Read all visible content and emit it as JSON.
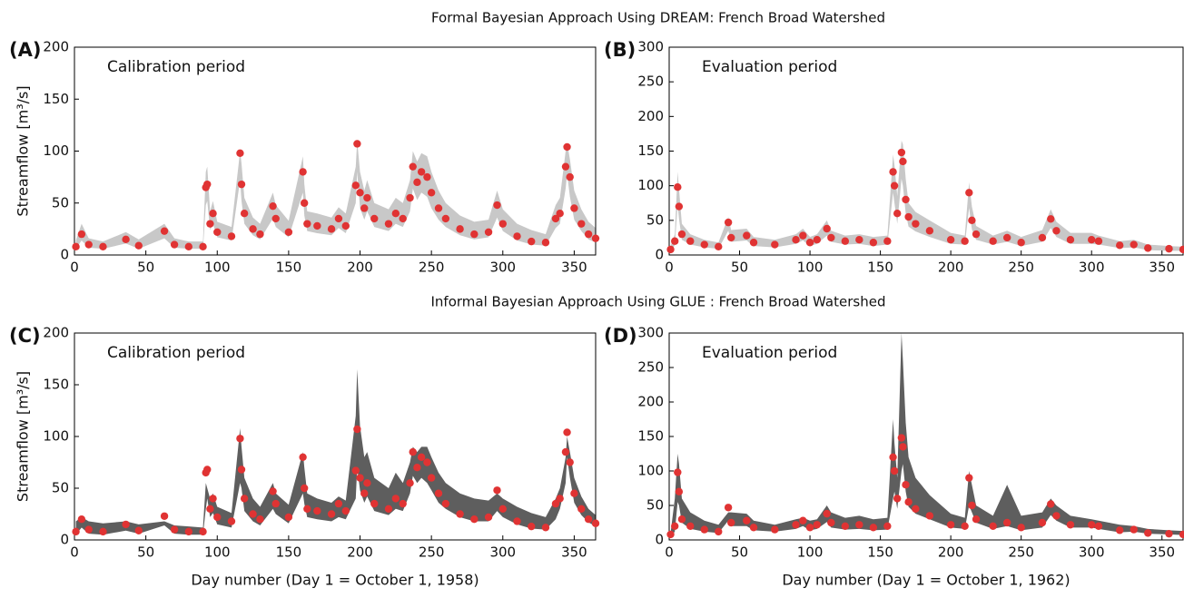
{
  "row_titles": [
    "Formal Bayesian Approach Using DREAM: French Broad Watershed",
    "Informal Bayesian Approach Using GLUE : French Broad Watershed"
  ],
  "chart_data": [
    {
      "type": "band_scatter",
      "panel": "(A)",
      "annotation": "Calibration period",
      "ylabel": "Streamflow [m³/s]",
      "band_color": "#c8c8c8",
      "point_color": "#e03333",
      "xlim": [
        0,
        365
      ],
      "xticks": [
        0,
        50,
        100,
        150,
        200,
        250,
        300,
        350
      ],
      "ylim": [
        0,
        200
      ],
      "yticks": [
        0,
        50,
        100,
        150,
        200
      ],
      "x": [
        1,
        5,
        10,
        20,
        36,
        45,
        63,
        70,
        80,
        90,
        92,
        93,
        95,
        97,
        100,
        110,
        116,
        117,
        119,
        125,
        130,
        139,
        141,
        150,
        160,
        161,
        163,
        170,
        180,
        185,
        190,
        197,
        198,
        200,
        203,
        205,
        210,
        220,
        225,
        230,
        235,
        237,
        240,
        243,
        247,
        250,
        255,
        260,
        270,
        280,
        290,
        296,
        300,
        310,
        320,
        330,
        337,
        340,
        344,
        345,
        347,
        350,
        355,
        360,
        365
      ],
      "observed": [
        8,
        20,
        10,
        8,
        15,
        9,
        23,
        10,
        8,
        8,
        65,
        68,
        30,
        40,
        22,
        18,
        98,
        68,
        40,
        25,
        20,
        47,
        35,
        22,
        80,
        50,
        30,
        28,
        25,
        35,
        28,
        67,
        107,
        60,
        45,
        55,
        35,
        30,
        40,
        35,
        55,
        85,
        70,
        80,
        75,
        60,
        45,
        35,
        25,
        20,
        22,
        48,
        30,
        18,
        13,
        12,
        35,
        40,
        85,
        104,
        75,
        45,
        30,
        20,
        16
      ],
      "lower": [
        6,
        14,
        7,
        6,
        11,
        6,
        16,
        7,
        6,
        6,
        48,
        52,
        24,
        30,
        17,
        14,
        72,
        52,
        30,
        19,
        15,
        35,
        27,
        17,
        60,
        38,
        23,
        21,
        19,
        26,
        21,
        50,
        80,
        45,
        34,
        42,
        27,
        23,
        30,
        27,
        42,
        64,
        53,
        60,
        56,
        45,
        34,
        27,
        19,
        15,
        17,
        36,
        23,
        14,
        10,
        9,
        26,
        30,
        64,
        78,
        56,
        34,
        23,
        15,
        12
      ],
      "upper": [
        14,
        30,
        16,
        13,
        22,
        15,
        30,
        16,
        13,
        13,
        80,
        85,
        42,
        52,
        32,
        27,
        100,
        88,
        55,
        36,
        30,
        60,
        48,
        33,
        95,
        68,
        42,
        40,
        36,
        46,
        40,
        85,
        110,
        80,
        62,
        72,
        50,
        44,
        55,
        50,
        72,
        100,
        90,
        98,
        95,
        80,
        62,
        50,
        38,
        32,
        34,
        62,
        44,
        30,
        24,
        20,
        48,
        55,
        100,
        108,
        92,
        62,
        44,
        32,
        26
      ]
    },
    {
      "type": "band_scatter",
      "panel": "(B)",
      "annotation": "Evaluation period",
      "band_color": "#c8c8c8",
      "point_color": "#e03333",
      "xlim": [
        0,
        365
      ],
      "xticks": [
        0,
        50,
        100,
        150,
        200,
        250,
        300,
        350
      ],
      "ylim": [
        0,
        300
      ],
      "yticks": [
        0,
        50,
        100,
        150,
        200,
        250,
        300
      ],
      "x": [
        1,
        4,
        6,
        7,
        9,
        15,
        25,
        35,
        42,
        44,
        55,
        60,
        75,
        90,
        95,
        100,
        105,
        112,
        115,
        125,
        135,
        145,
        155,
        159,
        160,
        162,
        165,
        166,
        168,
        170,
        175,
        185,
        200,
        210,
        213,
        215,
        218,
        230,
        240,
        250,
        265,
        271,
        275,
        285,
        300,
        305,
        320,
        330,
        340,
        355,
        365
      ],
      "observed": [
        8,
        20,
        98,
        70,
        30,
        20,
        15,
        12,
        47,
        25,
        28,
        18,
        15,
        22,
        28,
        18,
        22,
        38,
        25,
        20,
        22,
        18,
        20,
        120,
        100,
        60,
        148,
        135,
        80,
        55,
        45,
        35,
        22,
        20,
        90,
        50,
        30,
        20,
        25,
        18,
        25,
        52,
        35,
        22,
        22,
        20,
        14,
        15,
        10,
        9,
        8
      ],
      "lower": [
        6,
        14,
        72,
        52,
        22,
        15,
        11,
        9,
        35,
        19,
        21,
        13,
        11,
        16,
        21,
        13,
        16,
        28,
        19,
        15,
        16,
        13,
        15,
        90,
        75,
        45,
        110,
        100,
        60,
        41,
        34,
        26,
        16,
        15,
        68,
        37,
        22,
        15,
        19,
        13,
        19,
        39,
        26,
        16,
        16,
        15,
        10,
        11,
        7,
        6,
        6
      ],
      "upper": [
        13,
        30,
        120,
        95,
        45,
        30,
        22,
        18,
        55,
        36,
        38,
        26,
        22,
        30,
        38,
        26,
        30,
        50,
        35,
        28,
        30,
        26,
        28,
        145,
        130,
        85,
        165,
        160,
        110,
        75,
        62,
        50,
        32,
        28,
        105,
        70,
        42,
        28,
        35,
        26,
        36,
        66,
        48,
        32,
        32,
        28,
        20,
        22,
        15,
        13,
        12
      ]
    },
    {
      "type": "band_scatter",
      "panel": "(C)",
      "annotation": "Calibration period",
      "ylabel": "Streamflow [m³/s]",
      "xlabel": "Day number (Day 1 = October 1, 1958)",
      "band_color": "#5e5e5e",
      "point_color": "#e03333",
      "xlim": [
        0,
        365
      ],
      "xticks": [
        0,
        50,
        100,
        150,
        200,
        250,
        300,
        350
      ],
      "ylim": [
        0,
        200
      ],
      "yticks": [
        0,
        50,
        100,
        150,
        200
      ],
      "x": [
        1,
        5,
        10,
        20,
        36,
        45,
        63,
        70,
        80,
        90,
        92,
        93,
        95,
        97,
        100,
        110,
        116,
        117,
        119,
        125,
        130,
        139,
        141,
        150,
        160,
        161,
        163,
        170,
        180,
        185,
        190,
        197,
        198,
        200,
        203,
        205,
        210,
        220,
        225,
        230,
        235,
        237,
        240,
        243,
        247,
        250,
        255,
        260,
        270,
        280,
        290,
        296,
        300,
        310,
        320,
        330,
        337,
        340,
        344,
        345,
        347,
        350,
        355,
        360,
        365
      ],
      "observed": [
        8,
        20,
        10,
        8,
        15,
        9,
        23,
        10,
        8,
        8,
        65,
        68,
        30,
        40,
        22,
        18,
        98,
        68,
        40,
        25,
        20,
        47,
        35,
        22,
        80,
        50,
        30,
        28,
        25,
        35,
        28,
        67,
        107,
        60,
        45,
        55,
        35,
        30,
        40,
        35,
        55,
        85,
        70,
        80,
        75,
        60,
        45,
        35,
        25,
        20,
        22,
        48,
        30,
        18,
        13,
        12,
        35,
        40,
        85,
        104,
        75,
        45,
        30,
        20,
        16
      ],
      "lower": [
        5,
        12,
        6,
        5,
        9,
        6,
        14,
        6,
        5,
        5,
        30,
        40,
        22,
        26,
        15,
        12,
        55,
        50,
        28,
        18,
        14,
        30,
        25,
        16,
        45,
        35,
        22,
        20,
        18,
        22,
        20,
        40,
        70,
        48,
        36,
        42,
        28,
        24,
        30,
        28,
        45,
        62,
        55,
        60,
        55,
        48,
        36,
        30,
        22,
        18,
        18,
        28,
        22,
        15,
        11,
        10,
        20,
        30,
        55,
        80,
        60,
        36,
        24,
        17,
        13
      ],
      "upper": [
        18,
        22,
        18,
        16,
        18,
        15,
        18,
        14,
        13,
        12,
        55,
        50,
        40,
        45,
        32,
        26,
        108,
        90,
        60,
        40,
        32,
        55,
        45,
        34,
        85,
        70,
        45,
        40,
        36,
        42,
        38,
        120,
        165,
        110,
        80,
        85,
        60,
        50,
        65,
        55,
        75,
        90,
        85,
        90,
        90,
        80,
        65,
        55,
        45,
        40,
        38,
        45,
        40,
        32,
        26,
        22,
        40,
        50,
        80,
        100,
        85,
        60,
        42,
        30,
        24
      ]
    },
    {
      "type": "band_scatter",
      "panel": "(D)",
      "annotation": "Evaluation period",
      "xlabel": "Day number (Day 1 = October 1, 1962)",
      "band_color": "#5e5e5e",
      "point_color": "#e03333",
      "xlim": [
        0,
        365
      ],
      "xticks": [
        0,
        50,
        100,
        150,
        200,
        250,
        300,
        350
      ],
      "ylim": [
        0,
        300
      ],
      "yticks": [
        0,
        50,
        100,
        150,
        200,
        250,
        300
      ],
      "x": [
        1,
        4,
        6,
        7,
        9,
        15,
        25,
        35,
        42,
        44,
        55,
        60,
        75,
        90,
        95,
        100,
        105,
        112,
        115,
        125,
        135,
        145,
        155,
        159,
        160,
        162,
        165,
        166,
        168,
        170,
        175,
        185,
        200,
        210,
        213,
        215,
        218,
        230,
        240,
        250,
        265,
        271,
        275,
        285,
        300,
        305,
        320,
        330,
        340,
        355,
        365
      ],
      "observed": [
        8,
        20,
        98,
        70,
        30,
        20,
        15,
        12,
        47,
        25,
        28,
        18,
        15,
        22,
        28,
        18,
        22,
        38,
        25,
        20,
        22,
        18,
        20,
        120,
        100,
        60,
        148,
        135,
        80,
        55,
        45,
        35,
        22,
        20,
        90,
        50,
        30,
        20,
        25,
        18,
        25,
        52,
        35,
        22,
        22,
        20,
        14,
        15,
        10,
        9,
        8
      ],
      "lower": [
        5,
        12,
        55,
        50,
        25,
        16,
        12,
        10,
        28,
        20,
        20,
        14,
        12,
        16,
        20,
        14,
        16,
        26,
        18,
        15,
        16,
        14,
        15,
        60,
        70,
        45,
        100,
        110,
        70,
        48,
        38,
        30,
        18,
        16,
        50,
        40,
        25,
        16,
        20,
        14,
        18,
        36,
        28,
        18,
        18,
        16,
        11,
        12,
        9,
        8,
        7
      ],
      "upper": [
        10,
        60,
        125,
        110,
        60,
        40,
        28,
        22,
        40,
        40,
        38,
        28,
        22,
        30,
        32,
        28,
        30,
        50,
        40,
        32,
        35,
        30,
        32,
        175,
        140,
        90,
        300,
        260,
        170,
        120,
        90,
        65,
        38,
        32,
        100,
        80,
        50,
        35,
        80,
        35,
        40,
        60,
        50,
        35,
        30,
        28,
        22,
        20,
        16,
        14,
        13
      ]
    }
  ]
}
